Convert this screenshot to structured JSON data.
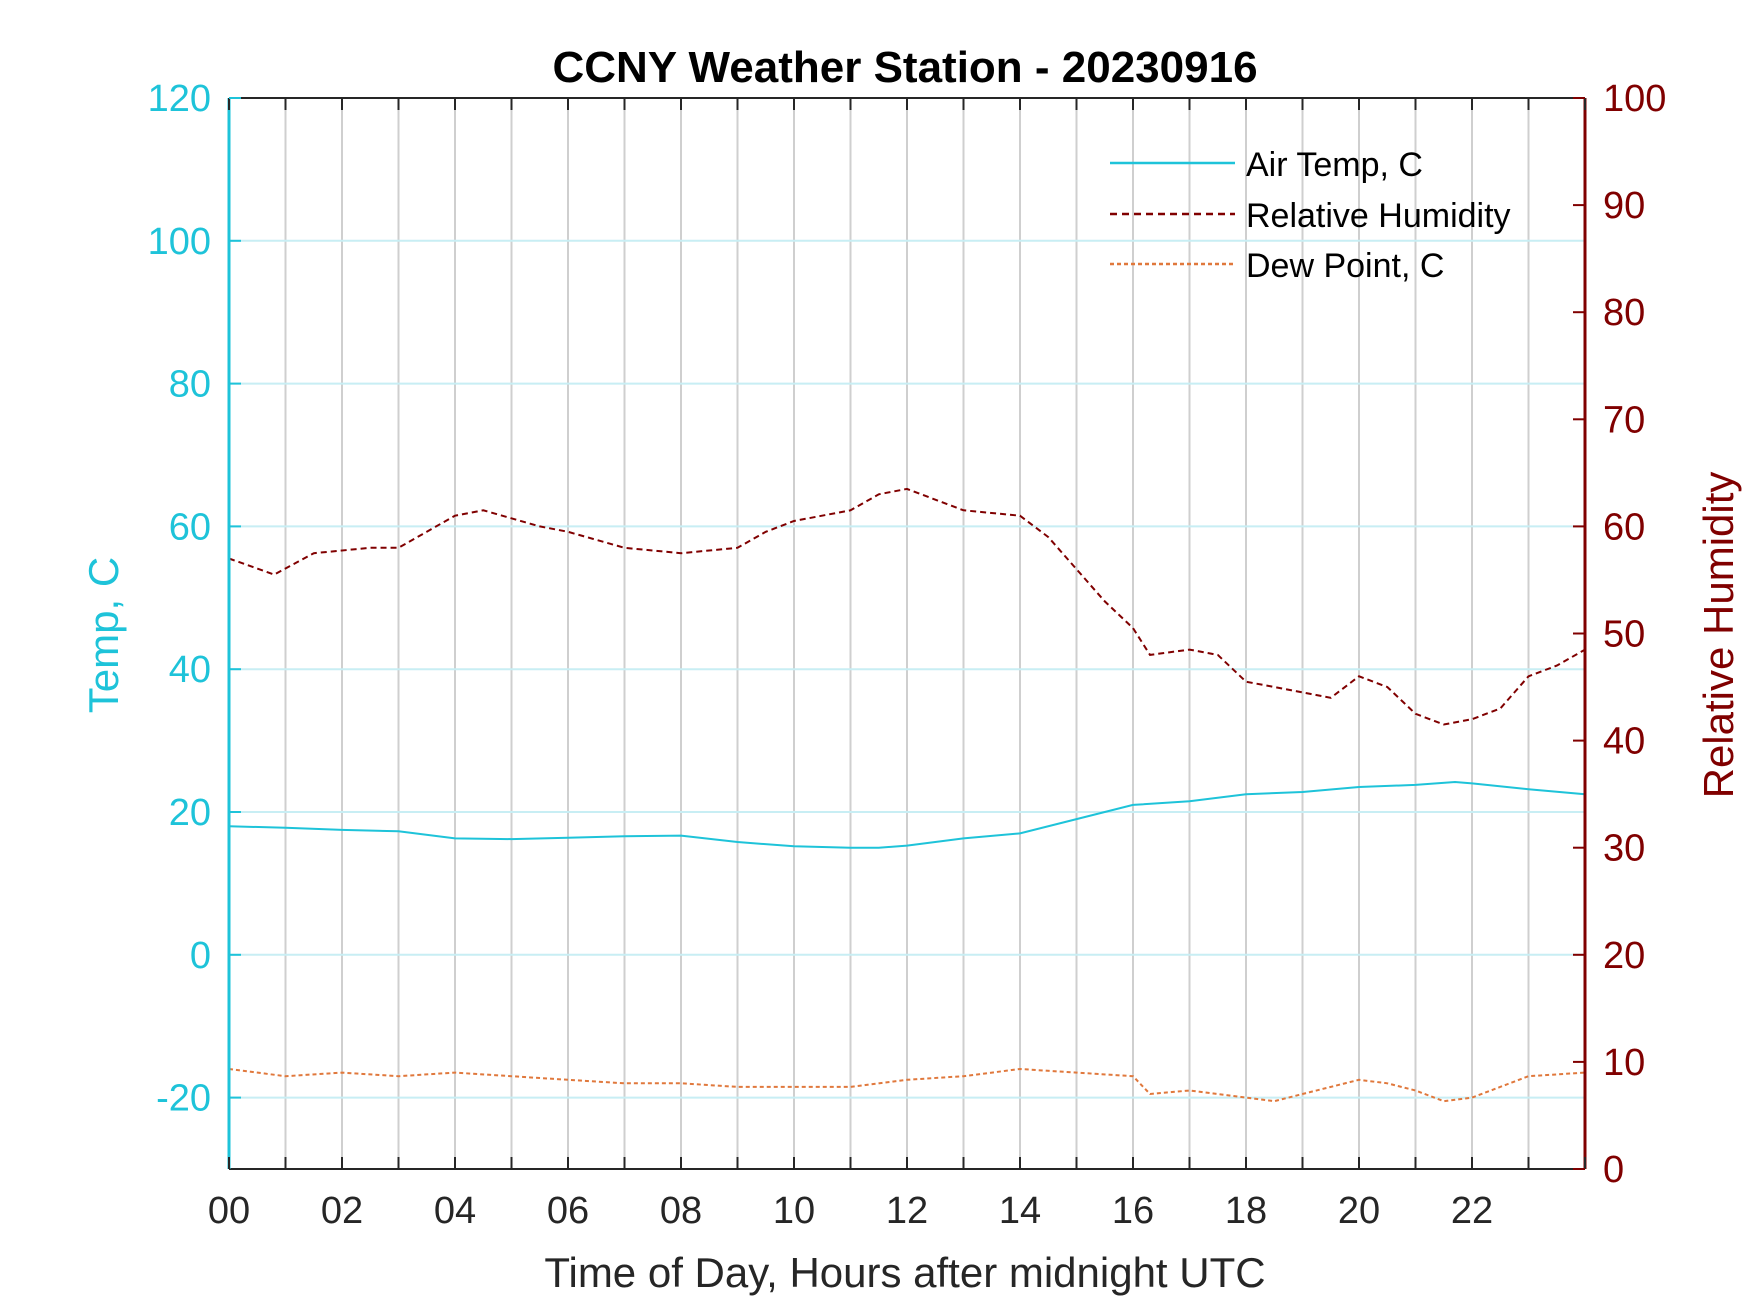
{
  "chart_data": {
    "type": "line",
    "title": "CCNY Weather Station - 20230916",
    "xlabel": "Time of Day, Hours after midnight UTC",
    "ylabel_left": "Temp, C",
    "ylabel_right": "Relative Humidity",
    "xlim": [
      0,
      24
    ],
    "ylim_left": [
      -30,
      120
    ],
    "ylim_right": [
      0,
      100
    ],
    "x_tick_labels": [
      "00",
      "02",
      "04",
      "06",
      "08",
      "10",
      "12",
      "14",
      "16",
      "18",
      "20",
      "22"
    ],
    "x_tick_values": [
      0,
      2,
      4,
      6,
      8,
      10,
      12,
      14,
      16,
      18,
      20,
      22
    ],
    "y_left_ticks": [
      -20,
      0,
      20,
      40,
      60,
      80,
      100,
      120
    ],
    "y_right_ticks": [
      0,
      10,
      20,
      30,
      40,
      50,
      60,
      70,
      80,
      90,
      100
    ],
    "legend_position": "top-right",
    "colors": {
      "left_axis": "#1ec3d9",
      "right_axis": "#800000",
      "dew": "#e0783c",
      "grid_v": "#cfcfcf",
      "grid_h": "#c8eef4"
    },
    "series": [
      {
        "name": "Air Temp, C",
        "axis": "left",
        "style": "solid",
        "color": "#1ec3d9",
        "x": [
          0,
          1,
          2,
          3,
          4,
          5,
          6,
          7,
          8,
          9,
          10,
          11,
          11.5,
          12,
          13,
          14,
          15,
          16,
          17,
          18,
          19,
          20,
          21,
          21.7,
          22,
          23,
          24
        ],
        "values": [
          18,
          17.8,
          17.5,
          17.3,
          16.3,
          16.2,
          16.4,
          16.6,
          16.7,
          15.8,
          15.2,
          15,
          15,
          15.3,
          16.3,
          17,
          19,
          21,
          21.5,
          22.5,
          22.8,
          23.5,
          23.8,
          24.2,
          24,
          23.2,
          22.5
        ]
      },
      {
        "name": "Relative Humidity",
        "axis": "right",
        "style": "dashed",
        "color": "#800000",
        "x": [
          0,
          0.8,
          1.5,
          2.5,
          3,
          4,
          4.5,
          5.5,
          6,
          7,
          8,
          9,
          9.5,
          10,
          11,
          11.5,
          12,
          13,
          14,
          14.5,
          15,
          15.5,
          16,
          16.3,
          17,
          17.5,
          18,
          18.5,
          19,
          19.5,
          20,
          20.5,
          21,
          21.5,
          22,
          22.5,
          23,
          23.5,
          24
        ],
        "values": [
          57,
          55.5,
          57.5,
          58,
          58,
          61,
          61.5,
          60,
          59.5,
          58,
          57.5,
          58,
          59.5,
          60.5,
          61.5,
          63,
          63.5,
          61.5,
          61,
          59,
          56,
          53,
          50.5,
          48,
          48.5,
          48,
          45.5,
          45,
          44.5,
          44,
          46,
          45,
          42.5,
          41.5,
          42,
          43,
          46,
          47,
          48.5
        ]
      },
      {
        "name": "Dew Point, C",
        "axis": "left",
        "style": "dashed",
        "color": "#e0783c",
        "x": [
          0,
          1,
          2,
          3,
          4,
          5,
          6,
          7,
          8,
          9,
          10,
          11,
          12,
          13,
          14,
          15,
          16,
          16.3,
          17,
          18,
          18.5,
          19,
          20,
          20.5,
          21,
          21.5,
          22,
          23,
          24
        ],
        "values": [
          -16,
          -17,
          -16.5,
          -17,
          -16.5,
          -17,
          -17.5,
          -18,
          -18,
          -18.5,
          -18.5,
          -18.5,
          -17.5,
          -17,
          -16,
          -16.5,
          -17,
          -19.5,
          -19,
          -20,
          -20.5,
          -19.5,
          -17.5,
          -18,
          -19,
          -20.5,
          -20,
          -17,
          -16.5
        ]
      }
    ]
  }
}
